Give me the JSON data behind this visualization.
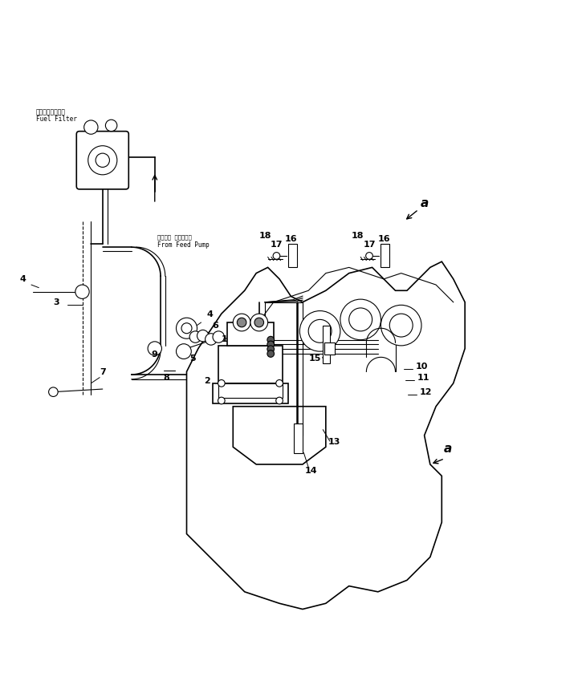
{
  "title": "",
  "bg_color": "#ffffff",
  "line_color": "#000000",
  "fig_width": 7.25,
  "fig_height": 8.69,
  "labels": {
    "fuel_filter_jp": "フェエルフィルタ",
    "fuel_filter_en": "Fuel Filter",
    "feed_pump_jp": "フィード  ポンプから",
    "feed_pump_en": "From Feed Pump"
  }
}
